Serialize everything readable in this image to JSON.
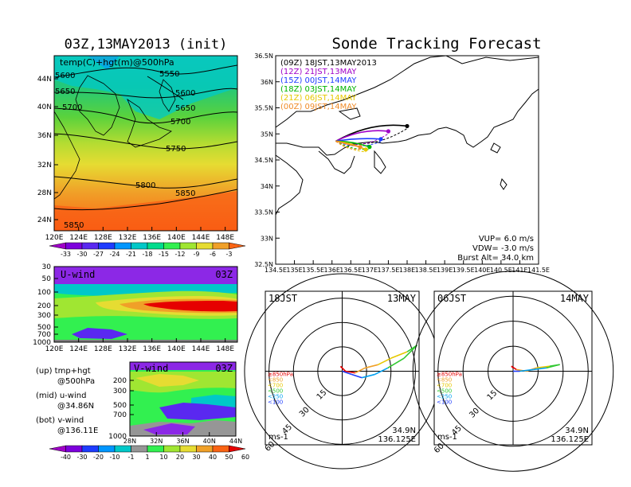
{
  "main_title": "Sonde Tracking Forecast",
  "left": {
    "title": "03Z,13MAY2013 (init)",
    "map": {
      "label": "temp(C)+hgt(m)@500hPa",
      "y_ticks": [
        "44N",
        "40N",
        "36N",
        "32N",
        "28N",
        "24N"
      ],
      "x_ticks": [
        "120E",
        "124E",
        "128E",
        "132E",
        "136E",
        "140E",
        "144E",
        "148E"
      ],
      "contours": [
        "5550",
        "5600",
        "5650",
        "5700",
        "5600",
        "5650",
        "5700",
        "5750",
        "5800",
        "5850",
        "5850"
      ]
    },
    "colorbar1": {
      "labels": [
        "-33",
        "-30",
        "-27",
        "-24",
        "-21",
        "-18",
        "-15",
        "-12",
        "-9",
        "-6",
        "-3"
      ],
      "colors": [
        "#a000c8",
        "#7d00dc",
        "#5a28f0",
        "#1e3cff",
        "#0096ff",
        "#00c8c8",
        "#00dc8c",
        "#32f050",
        "#a0e632",
        "#e6dc32",
        "#f0a028",
        "#fa6414"
      ]
    },
    "uwind": {
      "label": "U-wind",
      "time": "03Z",
      "y_ticks": [
        "30",
        "50",
        "100",
        "200",
        "300",
        "500",
        "700",
        "1000"
      ],
      "x_ticks": [
        "120E",
        "124E",
        "128E",
        "132E",
        "136E",
        "140E",
        "144E",
        "148E"
      ]
    },
    "vwind": {
      "label": "V-wind",
      "time": "03Z",
      "y_ticks": [
        "200",
        "300",
        "500",
        "700",
        "1000"
      ],
      "x_ticks": [
        "28N",
        "32N",
        "36N",
        "40N",
        "44N"
      ]
    },
    "notes": [
      {
        "a": "(up) tmp+hgt",
        "b": "@500hPa"
      },
      {
        "a": "(mid) u-wind",
        "b": "@34.86N"
      },
      {
        "a": "(bot) v-wind",
        "b": "@136.11E"
      }
    ],
    "colorbar2": {
      "labels": [
        "-40",
        "-30",
        "-20",
        "-10",
        "-1",
        "1",
        "10",
        "20",
        "30",
        "40",
        "50",
        "60"
      ],
      "colors": [
        "#a000c8",
        "#7d00dc",
        "#1e3cff",
        "#0096ff",
        "#00c8c8",
        "#969696",
        "#32f050",
        "#a0e632",
        "#e6dc32",
        "#f0a028",
        "#fa6414",
        "#e60000"
      ]
    }
  },
  "track": {
    "legend": [
      {
        "text": "(09Z)  18JST,13MAY2013",
        "color": "#000000"
      },
      {
        "text": "(12Z)  21JST,13MAY",
        "color": "#a000c8"
      },
      {
        "text": "(15Z)  00JST,14MAY",
        "color": "#1e3cff"
      },
      {
        "text": "(18Z)  03JST,14MAY",
        "color": "#00b400"
      },
      {
        "text": "(21Z)  06JST,14MAY",
        "color": "#e6c800"
      },
      {
        "text": "(00Z)  09JST,14MAY",
        "color": "#f08c28"
      }
    ],
    "y_ticks": [
      "36.5N",
      "36N",
      "35.5N",
      "35N",
      "34.5N",
      "34N",
      "33.5N",
      "33N",
      "32.5N"
    ],
    "x_ticks": [
      "134.5E",
      "135E",
      "135.5E",
      "136E",
      "136.5E",
      "137E",
      "137.5E",
      "138E",
      "138.5E",
      "139E",
      "139.5E",
      "140E",
      "140.5E",
      "141E",
      "141.5E"
    ],
    "params": [
      "VUP=  6.0  m/s",
      "VDW=  -3.0  m/s",
      "Burst  Alt=  34.0  km"
    ]
  },
  "hodo1": {
    "time": "18JST",
    "date": "13MAY",
    "rings": [
      "15",
      "30",
      "45",
      "60"
    ],
    "unit": "ms-1",
    "lat": "34.9N",
    "lon": "136.125E",
    "levels": [
      "≥850hPa",
      "<850",
      "<700",
      "<500",
      "<250",
      "<100"
    ]
  },
  "hodo2": {
    "time": "06JST",
    "date": "14MAY",
    "rings": [
      "15",
      "30",
      "45",
      "60"
    ],
    "unit": "ms-1",
    "lat": "34.9N",
    "lon": "136.125E",
    "levels": [
      "≥850hPa",
      "<850",
      "<700",
      "<500",
      "<250",
      "<100"
    ]
  },
  "chart_data": [
    {
      "type": "heatmap",
      "title": "03Z,13MAY2013 (init)",
      "subtitle": "temp(C)+hgt(m)@500hPa",
      "xlim": [
        120,
        150
      ],
      "ylim": [
        22,
        48
      ]
    },
    {
      "type": "heatmap",
      "title": "U-wind",
      "subtitle": "03Z",
      "xlim": [
        120,
        150
      ]
    },
    {
      "type": "heatmap",
      "title": "V-wind",
      "subtitle": "03Z",
      "xlim": [
        28,
        44
      ]
    },
    {
      "type": "line",
      "title": "Sonde Tracking Forecast",
      "xlim": [
        134.5,
        141.5
      ],
      "ylim": [
        32.5,
        36.5
      ],
      "series": [
        {
          "name": "(09Z)  18JST,13MAY2013",
          "end": [
            138.0,
            35.15
          ]
        },
        {
          "name": "(12Z)  21JST,13MAY",
          "end": [
            137.5,
            35.05
          ]
        },
        {
          "name": "(15Z)  00JST,14MAY",
          "end": [
            137.3,
            34.9
          ]
        },
        {
          "name": "(18Z)  03JST,14MAY",
          "end": [
            137.0,
            34.75
          ]
        },
        {
          "name": "(21Z)  06JST,14MAY",
          "end": [
            136.9,
            34.7
          ]
        },
        {
          "name": "(00Z)  09JST,14MAY",
          "end": [
            136.75,
            34.75
          ]
        }
      ]
    },
    {
      "type": "scatter",
      "title": "18JST",
      "subtitle": "13MAY"
    },
    {
      "type": "scatter",
      "title": "06JST",
      "subtitle": "14MAY"
    }
  ]
}
